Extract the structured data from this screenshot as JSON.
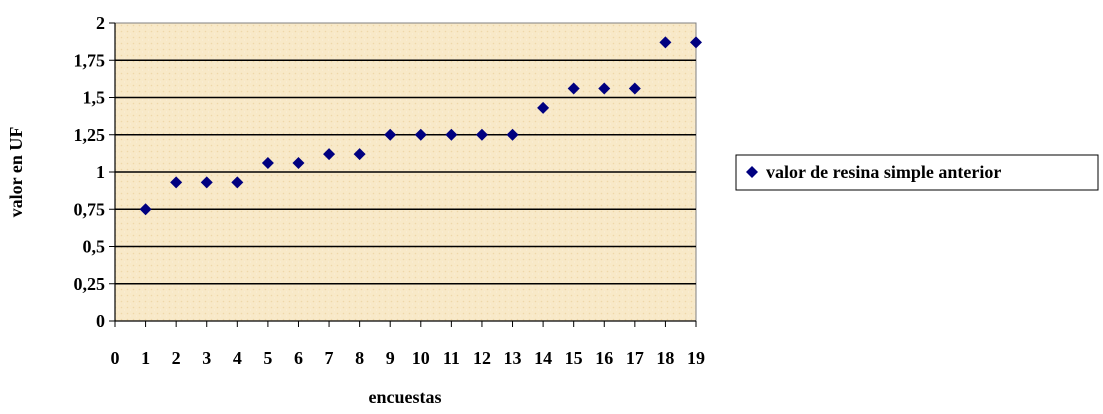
{
  "chart_data": {
    "type": "scatter",
    "title": "",
    "xlabel": "encuestas",
    "ylabel": "valor en UF",
    "xlim": [
      0,
      19
    ],
    "ylim": [
      0,
      2
    ],
    "x_ticks": [
      "0",
      "1",
      "2",
      "3",
      "4",
      "5",
      "6",
      "7",
      "8",
      "9",
      "10",
      "11",
      "12",
      "13",
      "14",
      "15",
      "16",
      "17",
      "18",
      "19"
    ],
    "y_ticks": [
      "0",
      "0,25",
      "0,5",
      "0,75",
      "1",
      "1,25",
      "1,5",
      "1,75",
      "2"
    ],
    "grid": "horizontal",
    "legend_position": "right",
    "series": [
      {
        "name": "valor de resina simple anterior",
        "marker": "diamond",
        "color": "#000080",
        "x": [
          1,
          2,
          3,
          4,
          5,
          6,
          7,
          8,
          9,
          10,
          11,
          12,
          13,
          14,
          15,
          16,
          17,
          18,
          19
        ],
        "y": [
          0.75,
          0.93,
          0.93,
          0.93,
          1.06,
          1.06,
          1.12,
          1.12,
          1.25,
          1.25,
          1.25,
          1.25,
          1.25,
          1.43,
          1.56,
          1.56,
          1.56,
          1.87,
          1.87
        ]
      }
    ],
    "plot_background": "#f7e7c4"
  }
}
